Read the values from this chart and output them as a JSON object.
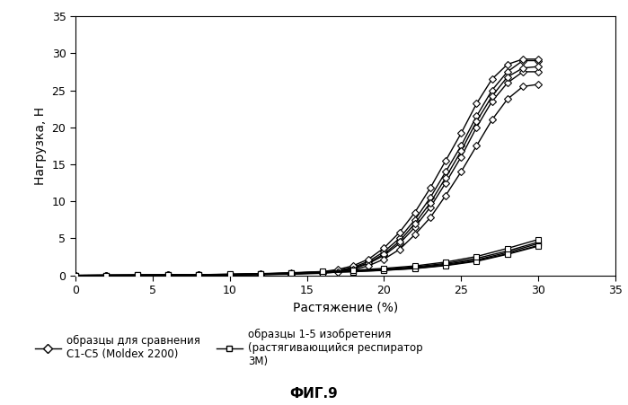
{
  "title": "ФИГ.9",
  "xlabel": "Растяжение (%)",
  "ylabel": "Нагрузка, Н",
  "xlim": [
    0,
    35
  ],
  "ylim": [
    0,
    35
  ],
  "xticks": [
    0,
    5,
    10,
    15,
    20,
    25,
    30,
    35
  ],
  "yticks": [
    0,
    5,
    10,
    15,
    20,
    25,
    30,
    35
  ],
  "legend1_label": "образцы для сравнения\nC1-C5 (Moldex 2200)",
  "legend2_label": "образцы 1-5 изобретения\n(растягивающийся респиратор\n3М)",
  "C_series": [
    {
      "x": [
        0,
        2,
        4,
        6,
        8,
        10,
        12,
        14,
        16,
        17,
        18,
        19,
        20,
        21,
        22,
        23,
        24,
        25,
        26,
        27,
        28,
        29,
        30
      ],
      "y": [
        0,
        0.01,
        0.02,
        0.03,
        0.05,
        0.1,
        0.15,
        0.25,
        0.4,
        0.65,
        1.1,
        1.9,
        3.2,
        5.0,
        7.5,
        10.5,
        14.0,
        17.5,
        21.5,
        25.0,
        27.5,
        29.0,
        29.0
      ]
    },
    {
      "x": [
        0,
        2,
        4,
        6,
        8,
        10,
        12,
        14,
        16,
        17,
        18,
        19,
        20,
        21,
        22,
        23,
        24,
        25,
        26,
        27,
        28,
        29,
        30
      ],
      "y": [
        0,
        0.01,
        0.02,
        0.03,
        0.04,
        0.08,
        0.12,
        0.2,
        0.35,
        0.55,
        0.9,
        1.6,
        2.7,
        4.3,
        6.5,
        9.2,
        12.5,
        16.0,
        20.0,
        23.5,
        26.0,
        27.5,
        27.5
      ]
    },
    {
      "x": [
        0,
        2,
        4,
        6,
        8,
        10,
        12,
        14,
        16,
        17,
        18,
        19,
        20,
        21,
        22,
        23,
        24,
        25,
        26,
        27,
        28,
        29,
        30
      ],
      "y": [
        0,
        0.01,
        0.02,
        0.03,
        0.05,
        0.09,
        0.14,
        0.22,
        0.38,
        0.6,
        1.0,
        1.7,
        2.9,
        4.6,
        7.0,
        9.8,
        13.2,
        16.8,
        20.8,
        24.2,
        26.8,
        28.0,
        28.2
      ]
    },
    {
      "x": [
        0,
        2,
        4,
        6,
        8,
        10,
        12,
        14,
        16,
        17,
        18,
        19,
        20,
        21,
        22,
        23,
        24,
        25,
        26,
        27,
        28,
        29,
        30
      ],
      "y": [
        0,
        0.01,
        0.02,
        0.04,
        0.06,
        0.12,
        0.18,
        0.3,
        0.5,
        0.8,
        1.3,
        2.2,
        3.7,
        5.8,
        8.5,
        11.8,
        15.5,
        19.2,
        23.2,
        26.5,
        28.5,
        29.2,
        29.2
      ]
    },
    {
      "x": [
        0,
        2,
        4,
        6,
        8,
        10,
        12,
        14,
        16,
        17,
        18,
        19,
        20,
        21,
        22,
        23,
        24,
        25,
        26,
        27,
        28,
        29,
        30
      ],
      "y": [
        0,
        0.01,
        0.01,
        0.02,
        0.03,
        0.06,
        0.1,
        0.16,
        0.28,
        0.45,
        0.75,
        1.3,
        2.2,
        3.5,
        5.5,
        7.8,
        10.8,
        14.0,
        17.5,
        21.0,
        23.8,
        25.5,
        25.8
      ]
    }
  ],
  "S_series": [
    {
      "x": [
        0,
        2,
        4,
        6,
        8,
        10,
        12,
        14,
        16,
        18,
        20,
        22,
        24,
        26,
        28,
        30
      ],
      "y": [
        0,
        0.02,
        0.04,
        0.07,
        0.1,
        0.15,
        0.2,
        0.3,
        0.42,
        0.58,
        0.78,
        1.05,
        1.5,
        2.1,
        3.1,
        4.3
      ]
    },
    {
      "x": [
        0,
        2,
        4,
        6,
        8,
        10,
        12,
        14,
        16,
        18,
        20,
        22,
        24,
        26,
        28,
        30
      ],
      "y": [
        0,
        0.01,
        0.03,
        0.05,
        0.08,
        0.12,
        0.18,
        0.27,
        0.38,
        0.52,
        0.7,
        0.95,
        1.38,
        1.98,
        2.92,
        4.05
      ]
    },
    {
      "x": [
        0,
        2,
        4,
        6,
        8,
        10,
        12,
        14,
        16,
        18,
        20,
        22,
        24,
        26,
        28,
        30
      ],
      "y": [
        0,
        0.02,
        0.04,
        0.06,
        0.09,
        0.14,
        0.21,
        0.32,
        0.45,
        0.62,
        0.85,
        1.15,
        1.62,
        2.3,
        3.3,
        4.5
      ]
    },
    {
      "x": [
        0,
        2,
        4,
        6,
        8,
        10,
        12,
        14,
        16,
        18,
        20,
        22,
        24,
        26,
        28,
        30
      ],
      "y": [
        0,
        0.01,
        0.02,
        0.04,
        0.07,
        0.11,
        0.16,
        0.25,
        0.36,
        0.5,
        0.68,
        0.92,
        1.32,
        1.9,
        2.85,
        3.95
      ]
    },
    {
      "x": [
        0,
        2,
        4,
        6,
        8,
        10,
        12,
        14,
        16,
        18,
        20,
        22,
        24,
        26,
        28,
        30
      ],
      "y": [
        0,
        0.02,
        0.03,
        0.06,
        0.1,
        0.16,
        0.24,
        0.36,
        0.52,
        0.7,
        0.95,
        1.28,
        1.8,
        2.55,
        3.65,
        4.85
      ]
    }
  ]
}
